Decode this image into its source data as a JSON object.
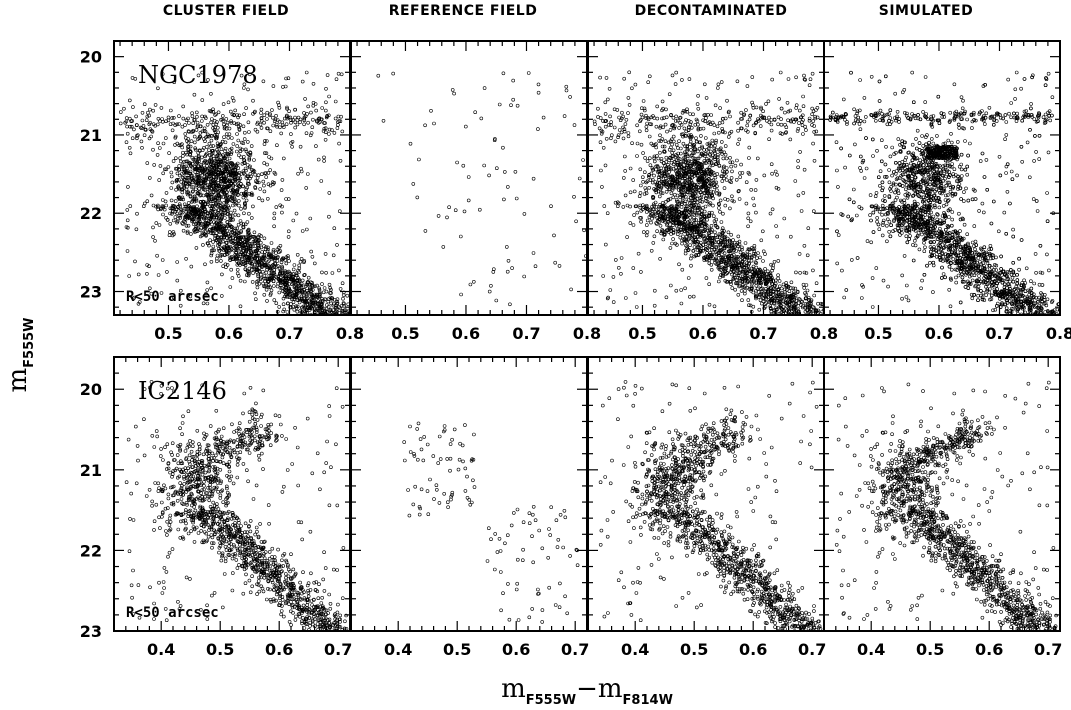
{
  "figure": {
    "column_titles": [
      "CLUSTER FIELD",
      "REFERENCE FIELD",
      "DECONTAMINATED",
      "SIMULATED"
    ],
    "ylabel_main": "m",
    "ylabel_sub": "F555W",
    "xlabel_a": "m",
    "xlabel_a_sub": "F555W",
    "xlabel_minus": "−",
    "xlabel_b": "m",
    "xlabel_b_sub": "F814W"
  },
  "chart_data": [
    {
      "type": "scatter",
      "cluster": "NGC1978",
      "annotation": "R<50 arcsec",
      "xlim": [
        0.41,
        0.8
      ],
      "ylim": [
        23.3,
        19.8
      ],
      "y_inverted": true,
      "xticks": [
        0.5,
        0.6,
        0.7,
        0.8
      ],
      "yticks": [
        20,
        21,
        22,
        23
      ],
      "grid": false,
      "panels": [
        {
          "name": "CLUSTER FIELD",
          "points": 2600
        },
        {
          "name": "REFERENCE FIELD",
          "points": 95
        },
        {
          "name": "DECONTAMINATED",
          "points": 2450
        },
        {
          "name": "SIMULATED",
          "points": 2800
        }
      ]
    },
    {
      "type": "scatter",
      "cluster": "IC2146",
      "annotation": "R<50 arcsec",
      "xlim": [
        0.32,
        0.72
      ],
      "ylim": [
        23.0,
        19.6
      ],
      "y_inverted": true,
      "xticks": [
        0.4,
        0.5,
        0.6,
        0.7
      ],
      "yticks": [
        20,
        21,
        22,
        23
      ],
      "grid": false,
      "panels": [
        {
          "name": "CLUSTER FIELD",
          "points": 1500
        },
        {
          "name": "REFERENCE FIELD",
          "points": 130
        },
        {
          "name": "DECONTAMINATED",
          "points": 1400
        },
        {
          "name": "SIMULATED",
          "points": 1500
        }
      ]
    }
  ]
}
